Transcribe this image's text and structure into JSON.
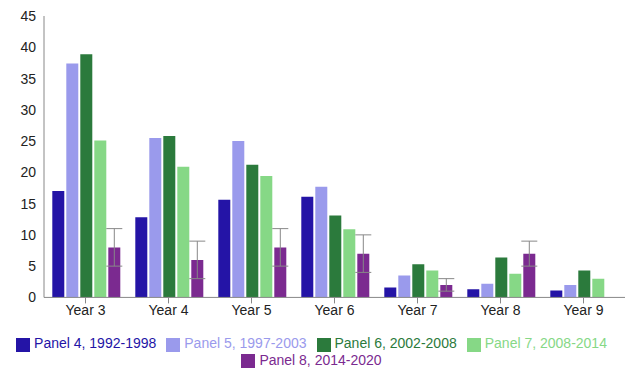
{
  "chart_data": {
    "type": "bar",
    "categories": [
      "Year 3",
      "Year 4",
      "Year 5",
      "Year 6",
      "Year 7",
      "Year 8",
      "Year 9"
    ],
    "series": [
      {
        "name": "Panel 4, 1992-1998",
        "color": "#2414a6",
        "values": [
          17,
          12.8,
          15.6,
          16.1,
          1.6,
          1.3,
          1.1
        ]
      },
      {
        "name": "Panel 5, 1997-2003",
        "color": "#9a9aec",
        "values": [
          37.4,
          25.5,
          25,
          17.7,
          3.5,
          2.2,
          2
        ]
      },
      {
        "name": "Panel 6, 2002-2008",
        "color": "#2b7a3c",
        "values": [
          38.9,
          25.8,
          21.2,
          13.1,
          5.3,
          6.4,
          4.3
        ]
      },
      {
        "name": "Panel 7, 2008-2014",
        "color": "#86d886",
        "values": [
          25.1,
          20.9,
          19.4,
          10.9,
          4.3,
          3.8,
          3
        ]
      },
      {
        "name": "Panel 8, 2014-2020",
        "color": "#7b2a90",
        "values": [
          8,
          6,
          8,
          7,
          2,
          7,
          null
        ],
        "errors": [
          3,
          3,
          3,
          3,
          1,
          2,
          null
        ]
      }
    ],
    "ylim": [
      0,
      45
    ],
    "yticks": [
      0,
      5,
      10,
      15,
      20,
      25,
      30,
      35,
      40,
      45
    ],
    "grid": false,
    "legend": "bottom"
  }
}
